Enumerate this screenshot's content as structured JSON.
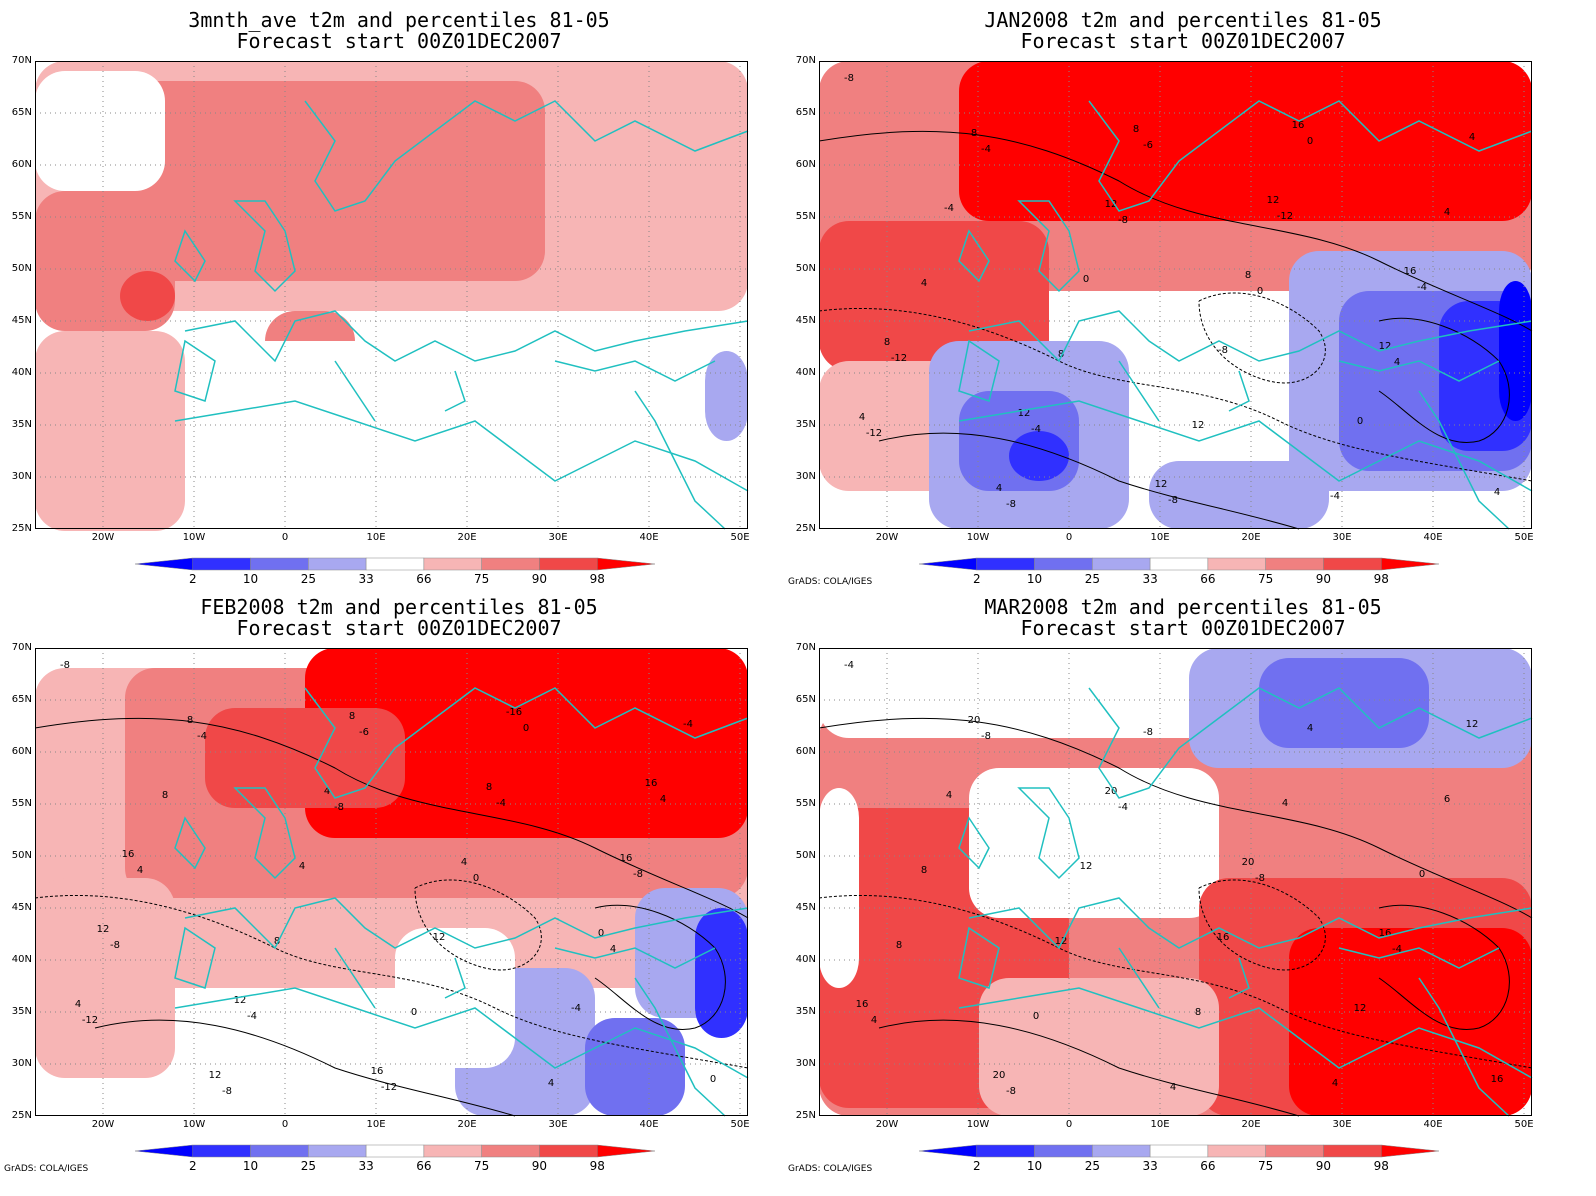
{
  "panels": [
    {
      "title_line1": "3mnth_ave t2m and percentiles 81-05",
      "title_line2": "Forecast start 00Z01DEC2007",
      "credit": "",
      "contour_labels": []
    },
    {
      "title_line1": "JAN2008 t2m and percentiles 81-05",
      "title_line2": "Forecast start 00Z01DEC2007",
      "credit": "GrADS: COLA/IGES",
      "contour_labels": [
        "-8",
        "-4",
        "-8",
        "0",
        "4",
        "-12",
        "-8",
        "-6",
        "-12",
        "-4",
        "-12",
        "-4",
        "-8",
        "0",
        "4",
        "4",
        "8",
        "12",
        "-4",
        "4",
        "-4",
        "0",
        "-8",
        "0",
        "4",
        "8",
        "12",
        "8",
        "12",
        "4",
        "4",
        "8",
        "12",
        "16",
        "8",
        "12",
        "12",
        "16"
      ]
    },
    {
      "title_line1": "FEB2008 t2m and percentiles 81-05",
      "title_line2": "Forecast start 00Z01DEC2007",
      "credit": "GrADS: COLA/IGES",
      "contour_labels": [
        "-8",
        "-4",
        "-8",
        "0",
        "4",
        "-12",
        "-8",
        "-6",
        "-4",
        "-8",
        "-8",
        "-4",
        "-12",
        "0",
        "4",
        "4",
        "8",
        "0",
        "4",
        "-4",
        "8",
        "4",
        "12",
        "-4",
        "0",
        "8",
        "4",
        "4",
        "0",
        "4",
        "12",
        "8",
        "8",
        "16",
        "12",
        "12",
        "16",
        "-16",
        "16",
        "16"
      ]
    },
    {
      "title_line1": "MAR2008 t2m and percentiles 81-05",
      "title_line2": "Forecast start 00Z01DEC2007",
      "credit": "GrADS: COLA/IGES",
      "contour_labels": [
        "-4",
        "-8",
        "-4",
        "-8",
        "-4",
        "4",
        "-8",
        "-8",
        "4",
        "0",
        "8",
        "0",
        "4",
        "4",
        "6",
        "8",
        "12",
        "8",
        "4",
        "12",
        "4",
        "12",
        "16",
        "12",
        "16",
        "20",
        "20",
        "20",
        "16",
        "16",
        "20"
      ]
    }
  ],
  "lat_ticks": [
    "70N",
    "65N",
    "60N",
    "55N",
    "50N",
    "45N",
    "40N",
    "35N",
    "30N",
    "25N"
  ],
  "lon_ticks": [
    "20W",
    "10W",
    "0",
    "10E",
    "20E",
    "30E",
    "40E",
    "50E"
  ],
  "colorbar_labels": [
    "2",
    "10",
    "25",
    "33",
    "66",
    "75",
    "90",
    "98"
  ],
  "colorbar_colors": [
    "#0000ff",
    "#3030ff",
    "#7070f0",
    "#a8a8f0",
    "#ffffff",
    "#f7b5b5",
    "#f08080",
    "#f04848",
    "#ff0000"
  ],
  "colors": {
    "coastline": "#20c0c0",
    "contour": "#000000",
    "grid": "#888888"
  }
}
